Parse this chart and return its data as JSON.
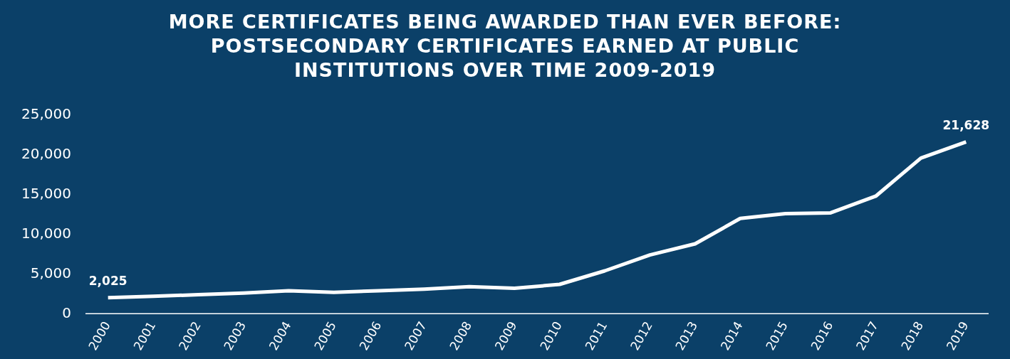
{
  "chart_data": {
    "type": "line",
    "title": "MORE CERTIFICATES BEING AWARDED THAN EVER BEFORE:\nPOSTSECONDARY CERTIFICATES EARNED AT PUBLIC\nINSTITUTIONS OVER TIME 2009-2019",
    "categories": [
      "2000",
      "2001",
      "2002",
      "2003",
      "2004",
      "2005",
      "2006",
      "2007",
      "2008",
      "2009",
      "2010",
      "2011",
      "2012",
      "2013",
      "2014",
      "2015",
      "2016",
      "2017",
      "2018",
      "2019"
    ],
    "values": [
      2025,
      2200,
      2400,
      2600,
      2900,
      2700,
      2900,
      3100,
      3400,
      3200,
      3700,
      5400,
      7400,
      8800,
      12000,
      12600,
      12700,
      14800,
      19600,
      21628
    ],
    "value_labels": [
      "2,025",
      null,
      null,
      null,
      null,
      null,
      null,
      null,
      null,
      null,
      null,
      null,
      null,
      null,
      null,
      null,
      null,
      null,
      null,
      "21,628"
    ],
    "color": "#ffffff",
    "ylim": [
      0,
      25000
    ],
    "yticks": [
      0,
      {
        "value": 5000,
        "label": "5,000"
      },
      {
        "value": 10000,
        "label": "10,000"
      },
      {
        "value": 15000,
        "label": "15,000"
      },
      {
        "value": 20000,
        "label": "20,000"
      },
      {
        "value": 25000,
        "label": "25,000"
      }
    ],
    "grid": false,
    "legend": false,
    "marker": "none",
    "line_style": "solid"
  }
}
